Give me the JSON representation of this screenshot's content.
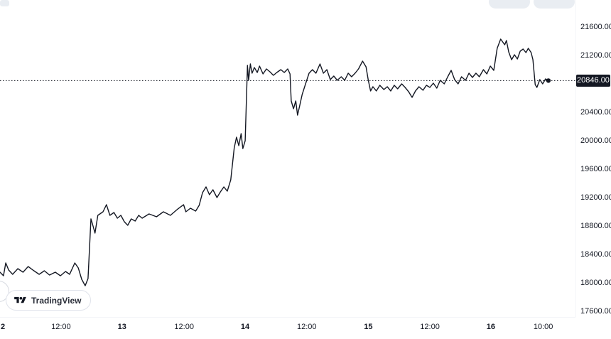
{
  "attribution": {
    "label": "TradingView"
  },
  "price_badge": {
    "label": "20846.00",
    "bg": "#131722",
    "fg": "#ffffff"
  },
  "chart_data": {
    "type": "line",
    "title": "",
    "xlabel": "",
    "ylabel": "",
    "legend": false,
    "grid": false,
    "line_color": "#131722",
    "ylim": [
      17600,
      21600
    ],
    "current_price": 20846,
    "y_ticks": [
      {
        "value": 21600,
        "label": "21600.00"
      },
      {
        "value": 21200,
        "label": "21200.00"
      },
      {
        "value": 20400,
        "label": "20400.00"
      },
      {
        "value": 20000,
        "label": "20000.00"
      },
      {
        "value": 19600,
        "label": "19600.00"
      },
      {
        "value": 19200,
        "label": "19200.00"
      },
      {
        "value": 18800,
        "label": "18800.00"
      },
      {
        "value": 18400,
        "label": "18400.00"
      },
      {
        "value": 18000,
        "label": "18000.00"
      },
      {
        "value": 17600,
        "label": "17600.00"
      }
    ],
    "x_ticks": [
      {
        "f": 0.005,
        "label": "2",
        "type": "day"
      },
      {
        "f": 0.106,
        "label": "12:00",
        "type": "time"
      },
      {
        "f": 0.212,
        "label": "13",
        "type": "day"
      },
      {
        "f": 0.32,
        "label": "12:00",
        "type": "time"
      },
      {
        "f": 0.426,
        "label": "14",
        "type": "day"
      },
      {
        "f": 0.533,
        "label": "12:00",
        "type": "time"
      },
      {
        "f": 0.64,
        "label": "15",
        "type": "day"
      },
      {
        "f": 0.747,
        "label": "12:00",
        "type": "time"
      },
      {
        "f": 0.853,
        "label": "16",
        "type": "day"
      },
      {
        "f": 0.944,
        "label": "10:00",
        "type": "time"
      }
    ],
    "points": [
      [
        0.0,
        18150
      ],
      [
        0.006,
        18100
      ],
      [
        0.01,
        18280
      ],
      [
        0.015,
        18180
      ],
      [
        0.022,
        18120
      ],
      [
        0.031,
        18200
      ],
      [
        0.04,
        18150
      ],
      [
        0.049,
        18230
      ],
      [
        0.059,
        18170
      ],
      [
        0.068,
        18120
      ],
      [
        0.077,
        18170
      ],
      [
        0.086,
        18110
      ],
      [
        0.096,
        18150
      ],
      [
        0.105,
        18100
      ],
      [
        0.114,
        18160
      ],
      [
        0.121,
        18120
      ],
      [
        0.13,
        18280
      ],
      [
        0.136,
        18210
      ],
      [
        0.142,
        18050
      ],
      [
        0.148,
        17960
      ],
      [
        0.153,
        18060
      ],
      [
        0.158,
        18900
      ],
      [
        0.161,
        18820
      ],
      [
        0.165,
        18700
      ],
      [
        0.17,
        18950
      ],
      [
        0.179,
        19000
      ],
      [
        0.185,
        19100
      ],
      [
        0.191,
        18950
      ],
      [
        0.198,
        18990
      ],
      [
        0.204,
        18910
      ],
      [
        0.21,
        18950
      ],
      [
        0.216,
        18860
      ],
      [
        0.222,
        18810
      ],
      [
        0.228,
        18900
      ],
      [
        0.235,
        18870
      ],
      [
        0.241,
        18950
      ],
      [
        0.247,
        18910
      ],
      [
        0.259,
        18970
      ],
      [
        0.272,
        18930
      ],
      [
        0.284,
        19000
      ],
      [
        0.296,
        18950
      ],
      [
        0.309,
        19040
      ],
      [
        0.319,
        19100
      ],
      [
        0.323,
        19000
      ],
      [
        0.331,
        19050
      ],
      [
        0.34,
        19010
      ],
      [
        0.346,
        19090
      ],
      [
        0.352,
        19270
      ],
      [
        0.358,
        19350
      ],
      [
        0.364,
        19240
      ],
      [
        0.37,
        19310
      ],
      [
        0.377,
        19200
      ],
      [
        0.383,
        19280
      ],
      [
        0.389,
        19350
      ],
      [
        0.395,
        19290
      ],
      [
        0.401,
        19450
      ],
      [
        0.407,
        19900
      ],
      [
        0.411,
        20050
      ],
      [
        0.415,
        19930
      ],
      [
        0.419,
        20100
      ],
      [
        0.422,
        19890
      ],
      [
        0.426,
        20000
      ],
      [
        0.43,
        21060
      ],
      [
        0.432,
        20850
      ],
      [
        0.435,
        21080
      ],
      [
        0.438,
        20950
      ],
      [
        0.442,
        21030
      ],
      [
        0.447,
        20960
      ],
      [
        0.451,
        21050
      ],
      [
        0.457,
        20940
      ],
      [
        0.463,
        21010
      ],
      [
        0.469,
        20970
      ],
      [
        0.475,
        20920
      ],
      [
        0.481,
        20960
      ],
      [
        0.488,
        21000
      ],
      [
        0.494,
        20960
      ],
      [
        0.5,
        21010
      ],
      [
        0.504,
        20940
      ],
      [
        0.506,
        20560
      ],
      [
        0.51,
        20450
      ],
      [
        0.514,
        20560
      ],
      [
        0.517,
        20360
      ],
      [
        0.521,
        20500
      ],
      [
        0.525,
        20650
      ],
      [
        0.531,
        20800
      ],
      [
        0.537,
        20950
      ],
      [
        0.543,
        21000
      ],
      [
        0.549,
        20950
      ],
      [
        0.556,
        21080
      ],
      [
        0.562,
        20950
      ],
      [
        0.568,
        21000
      ],
      [
        0.574,
        20860
      ],
      [
        0.58,
        20910
      ],
      [
        0.586,
        20850
      ],
      [
        0.593,
        20900
      ],
      [
        0.599,
        20850
      ],
      [
        0.605,
        20950
      ],
      [
        0.611,
        20900
      ],
      [
        0.617,
        20950
      ],
      [
        0.623,
        21010
      ],
      [
        0.63,
        21120
      ],
      [
        0.636,
        21040
      ],
      [
        0.64,
        20850
      ],
      [
        0.644,
        20700
      ],
      [
        0.648,
        20760
      ],
      [
        0.654,
        20700
      ],
      [
        0.66,
        20780
      ],
      [
        0.667,
        20720
      ],
      [
        0.673,
        20760
      ],
      [
        0.679,
        20700
      ],
      [
        0.685,
        20780
      ],
      [
        0.691,
        20730
      ],
      [
        0.698,
        20800
      ],
      [
        0.704,
        20750
      ],
      [
        0.71,
        20690
      ],
      [
        0.716,
        20610
      ],
      [
        0.722,
        20700
      ],
      [
        0.728,
        20760
      ],
      [
        0.735,
        20710
      ],
      [
        0.741,
        20780
      ],
      [
        0.747,
        20750
      ],
      [
        0.753,
        20810
      ],
      [
        0.759,
        20740
      ],
      [
        0.765,
        20850
      ],
      [
        0.772,
        20800
      ],
      [
        0.778,
        20900
      ],
      [
        0.784,
        20990
      ],
      [
        0.79,
        20860
      ],
      [
        0.796,
        20800
      ],
      [
        0.802,
        20900
      ],
      [
        0.809,
        20850
      ],
      [
        0.815,
        20950
      ],
      [
        0.821,
        20890
      ],
      [
        0.827,
        20950
      ],
      [
        0.833,
        20900
      ],
      [
        0.84,
        21000
      ],
      [
        0.846,
        20940
      ],
      [
        0.852,
        21050
      ],
      [
        0.858,
        20990
      ],
      [
        0.864,
        21300
      ],
      [
        0.87,
        21430
      ],
      [
        0.877,
        21350
      ],
      [
        0.88,
        21410
      ],
      [
        0.884,
        21250
      ],
      [
        0.889,
        21140
      ],
      [
        0.894,
        21210
      ],
      [
        0.899,
        21150
      ],
      [
        0.904,
        21260
      ],
      [
        0.909,
        21290
      ],
      [
        0.914,
        21240
      ],
      [
        0.918,
        21300
      ],
      [
        0.923,
        21240
      ],
      [
        0.926,
        21140
      ],
      [
        0.93,
        20790
      ],
      [
        0.933,
        20750
      ],
      [
        0.938,
        20860
      ],
      [
        0.943,
        20800
      ],
      [
        0.948,
        20870
      ],
      [
        0.953,
        20846
      ]
    ]
  }
}
